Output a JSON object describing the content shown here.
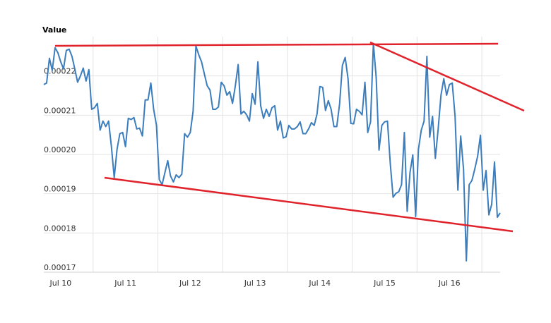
{
  "chart_data": {
    "type": "line",
    "title": "Value",
    "categories": [
      null,
      null,
      null,
      null,
      null,
      null,
      "Jul 10",
      null,
      null,
      null,
      null,
      null,
      null,
      null,
      null,
      null,
      null,
      null,
      null,
      null,
      null,
      null,
      null,
      null,
      null,
      null,
      null,
      null,
      null,
      "Jul 11",
      null,
      null,
      null,
      null,
      null,
      null,
      null,
      null,
      null,
      null,
      null,
      null,
      null,
      null,
      null,
      null,
      null,
      null,
      null,
      null,
      null,
      null,
      "Jul 12",
      null,
      null,
      null,
      null,
      null,
      null,
      null,
      null,
      null,
      null,
      null,
      null,
      null,
      null,
      null,
      null,
      null,
      null,
      null,
      null,
      null,
      null,
      "Jul 13",
      null,
      null,
      null,
      null,
      null,
      null,
      null,
      null,
      null,
      null,
      null,
      null,
      null,
      null,
      null,
      null,
      null,
      null,
      null,
      null,
      null,
      null,
      "Jul 14",
      null,
      null,
      null,
      null,
      null,
      null,
      null,
      null,
      null,
      null,
      null,
      null,
      null,
      null,
      null,
      null,
      null,
      null,
      null,
      null,
      null,
      null,
      "Jul 15",
      null,
      null,
      null,
      null,
      null,
      null,
      null,
      null,
      null,
      null,
      null,
      null,
      null,
      null,
      null,
      null,
      null,
      null,
      null,
      null,
      null,
      null,
      "Jul 16",
      null,
      null,
      null,
      null,
      null,
      null,
      null,
      null,
      null,
      null,
      null,
      null,
      null,
      null,
      null,
      null,
      null,
      null
    ],
    "values": [
      0.0002178,
      0.0002182,
      0.0002245,
      0.0002214,
      0.0002272,
      0.0002259,
      0.0002236,
      0.0002218,
      0.0002265,
      0.0002268,
      0.000225,
      0.0002218,
      0.0002184,
      0.00022,
      0.000222,
      0.0002187,
      0.0002216,
      0.0002115,
      0.0002119,
      0.000213,
      0.0002062,
      0.0002085,
      0.0002071,
      0.0002085,
      0.000202,
      0.0001941,
      0.0002013,
      0.0002053,
      0.0002056,
      0.000202,
      0.0002092,
      0.0002089,
      0.0002094,
      0.0002065,
      0.0002067,
      0.0002047,
      0.0002139,
      0.0002139,
      0.0002182,
      0.0002115,
      0.0002074,
      0.0001936,
      0.0001923,
      0.0001954,
      0.0001984,
      0.0001945,
      0.000193,
      0.0001948,
      0.0001941,
      0.000195,
      0.0002053,
      0.0002044,
      0.0002056,
      0.000211,
      0.0002276,
      0.0002254,
      0.0002236,
      0.0002205,
      0.0002175,
      0.0002164,
      0.0002115,
      0.0002115,
      0.0002121,
      0.0002184,
      0.0002175,
      0.0002151,
      0.000216,
      0.000213,
      0.0002175,
      0.0002229,
      0.0002103,
      0.000211,
      0.0002101,
      0.0002085,
      0.0002155,
      0.0002128,
      0.0002236,
      0.0002124,
      0.0002092,
      0.0002115,
      0.0002097,
      0.0002119,
      0.0002124,
      0.0002062,
      0.0002085,
      0.0002042,
      0.0002045,
      0.0002074,
      0.0002065,
      0.0002065,
      0.0002071,
      0.0002083,
      0.0002053,
      0.0002053,
      0.0002065,
      0.0002081,
      0.0002074,
      0.0002103,
      0.0002173,
      0.0002171,
      0.0002112,
      0.0002137,
      0.0002115,
      0.0002071,
      0.0002071,
      0.0002128,
      0.0002227,
      0.0002247,
      0.0002193,
      0.0002079,
      0.0002078,
      0.0002115,
      0.000211,
      0.0002101,
      0.0002184,
      0.0002056,
      0.0002083,
      0.0002283,
      0.0002196,
      0.0002011,
      0.0002074,
      0.0002083,
      0.0002085,
      0.0001977,
      0.0001891,
      0.0001901,
      0.0001905,
      0.0001923,
      0.0002056,
      0.0001855,
      0.0001954,
      0.0001999,
      0.0001842,
      0.0002013,
      0.0002062,
      0.0002085,
      0.000225,
      0.0002044,
      0.0002097,
      0.000199,
      0.0002065,
      0.0002151,
      0.0002193,
      0.0002151,
      0.0002178,
      0.0002182,
      0.0002097,
      0.0001909,
      0.0002047,
      0.0001963,
      0.0001729,
      0.0001923,
      0.0001934,
      0.0001963,
      0.0001995,
      0.0002049,
      0.0001909,
      0.0001959,
      0.0001846,
      0.0001873,
      0.0001981,
      0.000184,
      0.0001851
    ],
    "color": "#3b7dbd",
    "ylim": [
      0.00017,
      0.00023
    ],
    "yticks": [
      0.00017,
      0.00018,
      0.00019,
      {
        "value": 0.0002,
        "label": "0.00020"
      },
      0.00021,
      0.00022
    ],
    "grid": true
  }
}
